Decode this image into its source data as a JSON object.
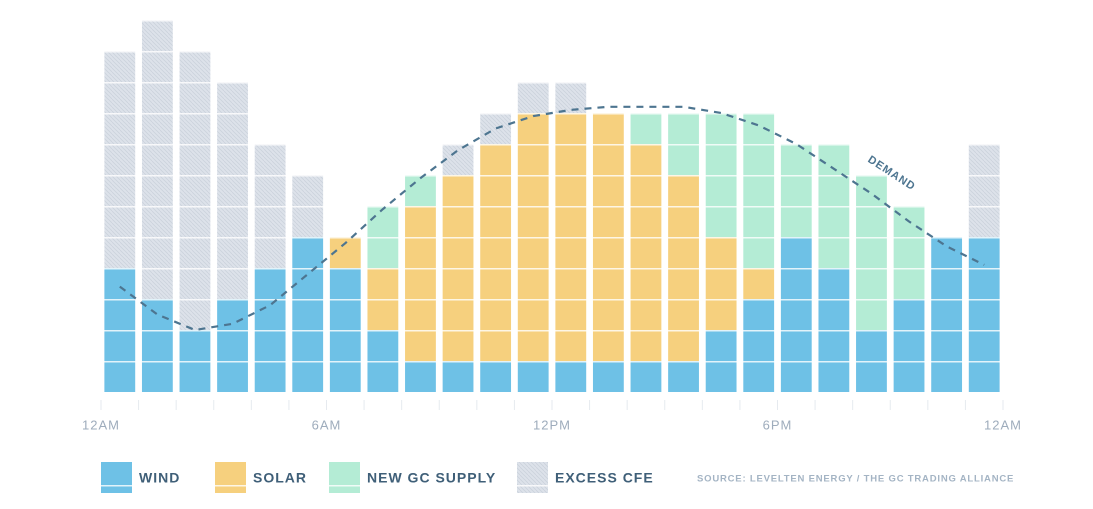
{
  "chart_data": {
    "type": "bar",
    "stacked": true,
    "x": [
      0.5,
      1.5,
      2.5,
      3.5,
      4.5,
      5.5,
      6.5,
      7.5,
      8.5,
      9.5,
      10.5,
      11.5,
      12.5,
      13.5,
      14.5,
      15.5,
      16.5,
      17.5,
      18.5,
      19.5,
      20.5,
      21.5,
      22.5,
      23.5
    ],
    "xlim": [
      0,
      24
    ],
    "xticks": [
      {
        "value": 0,
        "label": "12AM"
      },
      {
        "value": 6,
        "label": "6AM"
      },
      {
        "value": 12,
        "label": "12PM"
      },
      {
        "value": 18,
        "label": "6PM"
      },
      {
        "value": 24,
        "label": "12AM"
      }
    ],
    "ylim": [
      0,
      12
    ],
    "series": [
      {
        "name": "WIND",
        "color": "#6ec1e6",
        "values": [
          4,
          3,
          2,
          3,
          4,
          5,
          4,
          2,
          1,
          1,
          1,
          1,
          1,
          1,
          1,
          1,
          2,
          3,
          5,
          4,
          2,
          3,
          5,
          5
        ]
      },
      {
        "name": "SOLAR",
        "color": "#f6d07e",
        "values": [
          0,
          0,
          0,
          0,
          0,
          0,
          1,
          2,
          5,
          6,
          7,
          8,
          8,
          8,
          7,
          6,
          3,
          1,
          0,
          0,
          0,
          0,
          0,
          0
        ]
      },
      {
        "name": "NEW GC SUPPLY",
        "color": "#b4ecd5",
        "values": [
          0,
          0,
          0,
          0,
          0,
          0,
          0,
          2,
          1,
          0,
          0,
          0,
          0,
          0,
          1,
          2,
          4,
          5,
          3,
          4,
          5,
          3,
          0,
          0
        ]
      },
      {
        "name": "EXCESS CFE",
        "color": "#dde2ea",
        "values": [
          7,
          9,
          9,
          7,
          4,
          2,
          0,
          0,
          0,
          1,
          1,
          1,
          1,
          0,
          0,
          0,
          0,
          0,
          0,
          0,
          0,
          0,
          0,
          3
        ]
      }
    ],
    "demand": {
      "type": "line",
      "label": "DEMAND",
      "color": "#4d7590",
      "values": [
        3.4,
        2.5,
        2.0,
        2.2,
        2.8,
        3.8,
        4.8,
        5.9,
        6.9,
        7.8,
        8.5,
        8.9,
        9.1,
        9.2,
        9.2,
        9.2,
        9.0,
        8.6,
        8.0,
        7.2,
        6.4,
        5.5,
        4.7,
        4.1
      ]
    },
    "source": "SOURCE: LEVELTEN ENERGY / THE GC TRADING ALLIANCE"
  }
}
